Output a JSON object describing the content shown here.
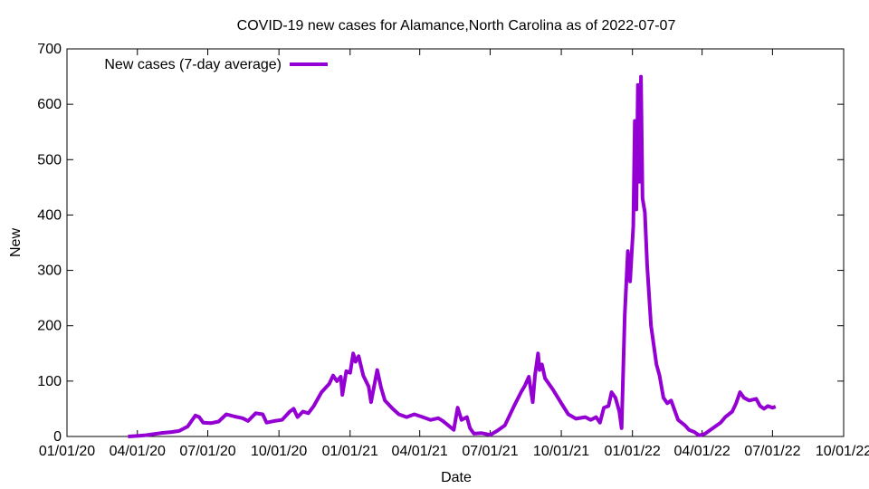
{
  "chart_data": {
    "type": "line",
    "title": "COVID-19 new cases for Alamance,North Carolina as of 2022-07-07",
    "xlabel": "Date",
    "ylabel": "New",
    "ylim": [
      0,
      700
    ],
    "yticks": [
      0,
      100,
      200,
      300,
      400,
      500,
      600,
      700
    ],
    "xlim": [
      "2020-01-01",
      "2022-10-01"
    ],
    "xticks": [
      {
        "date": "2020-01-01",
        "label": "01/01/20"
      },
      {
        "date": "2020-04-01",
        "label": "04/01/20"
      },
      {
        "date": "2020-07-01",
        "label": "07/01/20"
      },
      {
        "date": "2020-10-01",
        "label": "10/01/20"
      },
      {
        "date": "2021-01-01",
        "label": "01/01/21"
      },
      {
        "date": "2021-04-01",
        "label": "04/01/21"
      },
      {
        "date": "2021-07-01",
        "label": "07/01/21"
      },
      {
        "date": "2021-10-01",
        "label": "10/01/21"
      },
      {
        "date": "2022-01-01",
        "label": "01/01/22"
      },
      {
        "date": "2022-04-01",
        "label": "04/01/22"
      },
      {
        "date": "2022-07-01",
        "label": "07/01/22"
      },
      {
        "date": "2022-10-01",
        "label": "10/01/22"
      }
    ],
    "legend_position": "top-left",
    "grid": false,
    "series": [
      {
        "name": "New cases (7-day average)",
        "color": "#9400d3",
        "points": [
          [
            "2020-03-20",
            0
          ],
          [
            "2020-04-01",
            1
          ],
          [
            "2020-04-10",
            2
          ],
          [
            "2020-04-20",
            4
          ],
          [
            "2020-05-01",
            6
          ],
          [
            "2020-05-15",
            8
          ],
          [
            "2020-05-25",
            10
          ],
          [
            "2020-06-05",
            18
          ],
          [
            "2020-06-15",
            38
          ],
          [
            "2020-06-20",
            35
          ],
          [
            "2020-06-25",
            25
          ],
          [
            "2020-07-05",
            24
          ],
          [
            "2020-07-15",
            27
          ],
          [
            "2020-07-25",
            40
          ],
          [
            "2020-08-05",
            36
          ],
          [
            "2020-08-15",
            33
          ],
          [
            "2020-08-22",
            28
          ],
          [
            "2020-09-01",
            42
          ],
          [
            "2020-09-10",
            40
          ],
          [
            "2020-09-15",
            25
          ],
          [
            "2020-09-25",
            28
          ],
          [
            "2020-10-05",
            30
          ],
          [
            "2020-10-15",
            45
          ],
          [
            "2020-10-20",
            50
          ],
          [
            "2020-10-25",
            35
          ],
          [
            "2020-11-01",
            45
          ],
          [
            "2020-11-08",
            42
          ],
          [
            "2020-11-15",
            55
          ],
          [
            "2020-11-25",
            80
          ],
          [
            "2020-12-05",
            95
          ],
          [
            "2020-12-10",
            110
          ],
          [
            "2020-12-15",
            100
          ],
          [
            "2020-12-20",
            108
          ],
          [
            "2020-12-22",
            75
          ],
          [
            "2020-12-27",
            118
          ],
          [
            "2021-01-01",
            115
          ],
          [
            "2021-01-05",
            150
          ],
          [
            "2021-01-08",
            135
          ],
          [
            "2021-01-12",
            145
          ],
          [
            "2021-01-18",
            110
          ],
          [
            "2021-01-25",
            90
          ],
          [
            "2021-01-28",
            62
          ],
          [
            "2021-02-05",
            120
          ],
          [
            "2021-02-10",
            88
          ],
          [
            "2021-02-15",
            65
          ],
          [
            "2021-02-25",
            50
          ],
          [
            "2021-03-05",
            40
          ],
          [
            "2021-03-15",
            35
          ],
          [
            "2021-03-25",
            40
          ],
          [
            "2021-04-05",
            35
          ],
          [
            "2021-04-15",
            30
          ],
          [
            "2021-04-25",
            33
          ],
          [
            "2021-05-01",
            28
          ],
          [
            "2021-05-08",
            20
          ],
          [
            "2021-05-15",
            12
          ],
          [
            "2021-05-20",
            52
          ],
          [
            "2021-05-25",
            30
          ],
          [
            "2021-06-01",
            35
          ],
          [
            "2021-06-05",
            15
          ],
          [
            "2021-06-10",
            5
          ],
          [
            "2021-06-20",
            6
          ],
          [
            "2021-07-01",
            3
          ],
          [
            "2021-07-10",
            10
          ],
          [
            "2021-07-20",
            20
          ],
          [
            "2021-08-01",
            55
          ],
          [
            "2021-08-10",
            80
          ],
          [
            "2021-08-15",
            92
          ],
          [
            "2021-08-20",
            108
          ],
          [
            "2021-08-25",
            62
          ],
          [
            "2021-08-28",
            110
          ],
          [
            "2021-09-01",
            150
          ],
          [
            "2021-09-03",
            120
          ],
          [
            "2021-09-06",
            130
          ],
          [
            "2021-09-10",
            105
          ],
          [
            "2021-09-20",
            85
          ],
          [
            "2021-10-01",
            60
          ],
          [
            "2021-10-10",
            40
          ],
          [
            "2021-10-20",
            32
          ],
          [
            "2021-11-01",
            35
          ],
          [
            "2021-11-08",
            30
          ],
          [
            "2021-11-15",
            35
          ],
          [
            "2021-11-20",
            25
          ],
          [
            "2021-11-25",
            52
          ],
          [
            "2021-12-01",
            55
          ],
          [
            "2021-12-05",
            80
          ],
          [
            "2021-12-10",
            70
          ],
          [
            "2021-12-15",
            45
          ],
          [
            "2021-12-18",
            15
          ],
          [
            "2021-12-22",
            220
          ],
          [
            "2021-12-26",
            335
          ],
          [
            "2021-12-29",
            280
          ],
          [
            "2022-01-02",
            380
          ],
          [
            "2022-01-04",
            570
          ],
          [
            "2022-01-06",
            410
          ],
          [
            "2022-01-08",
            635
          ],
          [
            "2022-01-10",
            460
          ],
          [
            "2022-01-12",
            650
          ],
          [
            "2022-01-14",
            430
          ],
          [
            "2022-01-17",
            405
          ],
          [
            "2022-01-20",
            310
          ],
          [
            "2022-01-25",
            200
          ],
          [
            "2022-02-01",
            130
          ],
          [
            "2022-02-05",
            110
          ],
          [
            "2022-02-10",
            70
          ],
          [
            "2022-02-15",
            60
          ],
          [
            "2022-02-20",
            65
          ],
          [
            "2022-03-01",
            30
          ],
          [
            "2022-03-10",
            20
          ],
          [
            "2022-03-15",
            12
          ],
          [
            "2022-03-22",
            8
          ],
          [
            "2022-03-28",
            2
          ],
          [
            "2022-04-05",
            5
          ],
          [
            "2022-04-15",
            15
          ],
          [
            "2022-04-25",
            25
          ],
          [
            "2022-05-01",
            35
          ],
          [
            "2022-05-10",
            45
          ],
          [
            "2022-05-15",
            60
          ],
          [
            "2022-05-20",
            80
          ],
          [
            "2022-05-25",
            70
          ],
          [
            "2022-06-01",
            65
          ],
          [
            "2022-06-10",
            68
          ],
          [
            "2022-06-15",
            55
          ],
          [
            "2022-06-20",
            50
          ],
          [
            "2022-06-25",
            55
          ],
          [
            "2022-07-01",
            52
          ],
          [
            "2022-07-05",
            54
          ]
        ]
      }
    ]
  }
}
